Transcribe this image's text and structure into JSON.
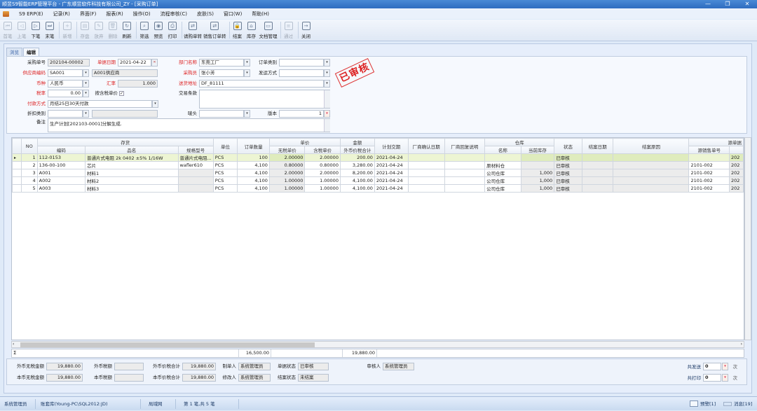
{
  "window": {
    "title": "顺昱S9智能ERP管理平台 - 广东顺昱软件科技有限公司_ZY - [采购订单]",
    "min": "—",
    "max": "❐",
    "close": "✕"
  },
  "menu": [
    "S9 ERP(E)",
    "记录(R)",
    "界面(F)",
    "报表(R)",
    "操作(O)",
    "流程审核(C)",
    "皮肤(S)",
    "窗口(W)",
    "帮助(H)"
  ],
  "toolbar": [
    {
      "label": "首笔",
      "icon": "first-icon",
      "glyph": "⏮",
      "disabled": true
    },
    {
      "label": "上笔",
      "icon": "prev-icon",
      "glyph": "◁",
      "disabled": true
    },
    {
      "label": "下笔",
      "icon": "next-icon",
      "glyph": "▷",
      "disabled": false
    },
    {
      "label": "末笔",
      "icon": "last-icon",
      "glyph": "⏭",
      "disabled": false
    },
    {
      "label": "新增",
      "icon": "add-icon",
      "glyph": "+",
      "disabled": true
    },
    {
      "label": "存盘",
      "icon": "save-icon",
      "glyph": "▤",
      "disabled": true
    },
    {
      "label": "放弃",
      "icon": "discard-icon",
      "glyph": "✎",
      "disabled": true
    },
    {
      "label": "删除",
      "icon": "delete-icon",
      "glyph": "🗑",
      "disabled": true
    },
    {
      "label": "刷新",
      "icon": "refresh-icon",
      "glyph": "↻",
      "disabled": false
    },
    {
      "label": "筛选",
      "icon": "filter-icon",
      "glyph": "⌕",
      "disabled": false
    },
    {
      "label": "预览",
      "icon": "preview-icon",
      "glyph": "◉",
      "disabled": false
    },
    {
      "label": "打印",
      "icon": "print-icon",
      "glyph": "⎙",
      "disabled": false
    },
    {
      "label": "请购单转",
      "icon": "requisition-convert-icon",
      "glyph": "⇄",
      "disabled": false
    },
    {
      "label": "销售订单转",
      "icon": "sales-order-convert-icon",
      "glyph": "⇄",
      "disabled": false
    },
    {
      "label": "结案",
      "icon": "lock-icon",
      "glyph": "🔒",
      "disabled": false
    },
    {
      "label": "库存",
      "icon": "warehouse-icon",
      "glyph": "⌂",
      "disabled": false
    },
    {
      "label": "文档管理",
      "icon": "folder-icon",
      "glyph": "▭",
      "disabled": false
    },
    {
      "label": "通过",
      "icon": "approve-icon",
      "glyph": "≡",
      "disabled": true
    },
    {
      "label": "关闭",
      "icon": "exit-icon",
      "glyph": "→",
      "disabled": false
    }
  ],
  "tabs": [
    "浏览",
    "编辑"
  ],
  "form": {
    "po_no_label": "采购单号",
    "po_no": "202104-00002",
    "date_label": "单据日期",
    "date": "2021-04-22",
    "dept_label": "部门名称",
    "dept": "东莞工厂",
    "order_type_label": "订单类别",
    "order_type": "",
    "supplier_label": "供应商编码",
    "supplier": "SA001",
    "supplier_name": "A001供应商",
    "buyer_label": "采购员",
    "buyer": "张小芳",
    "ship_label": "发运方式",
    "ship": "",
    "currency_label": "币种",
    "currency": "人民币",
    "rate_label": "汇率",
    "rate": "1.000",
    "address_label": "送货地址",
    "address": "DF_81111",
    "tax_label": "税率",
    "tax": "0.00",
    "tax_inclusive_label": "按含税单价",
    "tax_inclusive": true,
    "terms_label": "交易条款",
    "terms": "",
    "payment_label": "付款方式",
    "payment": "月结25日30天付款",
    "discount_label": "折扣类别",
    "discount": "",
    "mark_label": "唛头",
    "mark": "",
    "version_label": "版本",
    "version": "1",
    "remark_label": "备注",
    "remark": "生产计划[202103-0001]分解生成."
  },
  "stamp": "已审核",
  "grid": {
    "group_headers": {
      "inventory": "存货",
      "price": "单价",
      "amount": "金额",
      "warehouse": "仓库",
      "source": "源单据"
    },
    "headers": {
      "no": "NO",
      "code": "编码",
      "name": "品名",
      "spec": "规格型号",
      "unit": "单位",
      "qty": "订单数量",
      "price_ex": "无税单价",
      "price_in": "含税单价",
      "amount_fc": "外币价税合计",
      "delivery": "计划交期",
      "confirm_date": "厂商确认日期",
      "reply": "厂商回复说明",
      "wh_name": "名称",
      "stock": "当前库存",
      "status": "状态",
      "close_date": "结案日期",
      "close_reason": "结案原因",
      "src_no": "源销售单号",
      "src_date": ""
    },
    "rows": [
      {
        "no": "1",
        "code": "112-0153",
        "name": "普通片式电阻 2k 0402 ±5% 1/16W",
        "spec": "普通片式电阻...",
        "unit": "PCS",
        "qty": "100",
        "price_ex": "2.00000",
        "price_in": "2.00000",
        "amount_fc": "200.00",
        "delivery": "2021-04-24",
        "confirm_date": "",
        "reply": "",
        "wh_name": "",
        "stock": "",
        "status": "已审核",
        "close_date": "",
        "close_reason": "",
        "src_no": "",
        "src_date": "202"
      },
      {
        "no": "2",
        "code": "136-00-100",
        "name": "芯片",
        "spec": "wafler610",
        "unit": "PCS",
        "qty": "4,100",
        "price_ex": "0.80000",
        "price_in": "0.80000",
        "amount_fc": "3,280.00",
        "delivery": "2021-04-24",
        "confirm_date": "",
        "reply": "",
        "wh_name": "原材料仓",
        "stock": "",
        "status": "已审核",
        "close_date": "",
        "close_reason": "",
        "src_no": "2101-002",
        "src_date": "202"
      },
      {
        "no": "3",
        "code": "A001",
        "name": "材料1",
        "spec": "",
        "unit": "PCS",
        "qty": "4,100",
        "price_ex": "2.00000",
        "price_in": "2.00000",
        "amount_fc": "8,200.00",
        "delivery": "2021-04-24",
        "confirm_date": "",
        "reply": "",
        "wh_name": "公司仓库",
        "stock": "1,000",
        "status": "已审核",
        "close_date": "",
        "close_reason": "",
        "src_no": "2101-002",
        "src_date": "202"
      },
      {
        "no": "4",
        "code": "A002",
        "name": "材料2",
        "spec": "",
        "unit": "PCS",
        "qty": "4,100",
        "price_ex": "1.00000",
        "price_in": "1.00000",
        "amount_fc": "4,100.00",
        "delivery": "2021-04-24",
        "confirm_date": "",
        "reply": "",
        "wh_name": "公司仓库",
        "stock": "1,000",
        "status": "已审核",
        "close_date": "",
        "close_reason": "",
        "src_no": "2101-002",
        "src_date": "202"
      },
      {
        "no": "5",
        "code": "A003",
        "name": "材料3",
        "spec": "",
        "unit": "PCS",
        "qty": "4,100",
        "price_ex": "1.00000",
        "price_in": "1.00000",
        "amount_fc": "4,100.00",
        "delivery": "2021-04-24",
        "confirm_date": "",
        "reply": "",
        "wh_name": "公司仓库",
        "stock": "1,000",
        "status": "已审核",
        "close_date": "",
        "close_reason": "",
        "src_no": "2101-002",
        "src_date": "202"
      }
    ],
    "sum_symbol": "Σ",
    "sum_qty": "16,500.00",
    "sum_amount": "19,880.00"
  },
  "totals": {
    "fc_net_label": "外币无税金额",
    "fc_net": "19,880.00",
    "fc_tax_label": "外币税额",
    "fc_tax": "",
    "fc_total_label": "外币价税合计",
    "fc_total": "19,880.00",
    "lc_net_label": "本币无税金额",
    "lc_net": "19,880.00",
    "lc_tax_label": "本币税额",
    "lc_tax": "",
    "lc_total_label": "本币价税合计",
    "lc_total": "19,880.00",
    "creator_label": "制单人",
    "creator": "系统管理员",
    "modifier_label": "修改人",
    "modifier": "系统管理员",
    "doc_status_label": "单据状态",
    "doc_status": "已审核",
    "close_status_label": "结案状态",
    "close_status": "未结案",
    "auditor_label": "审核人",
    "auditor": "系统管理员",
    "sent_label": "共发送",
    "sent": "0",
    "printed_label": "共打印",
    "printed": "0",
    "times": "次"
  },
  "status": {
    "user": "系统管理员",
    "db": "账套库(Young-PC\\SQL2012:JD)",
    "network": "局域网",
    "record": "第 1 笔,共 5 笔",
    "alerts": "预警[1]",
    "messages": "消息[19]"
  }
}
